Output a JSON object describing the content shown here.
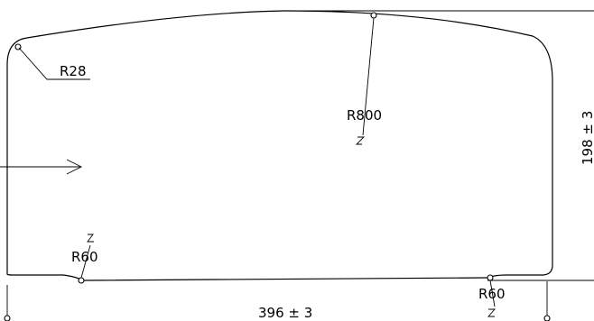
{
  "drawing": {
    "radius_labels": {
      "top_left": "R28",
      "top_center": "R800",
      "bottom_left": "R60",
      "bottom_right": "R60"
    },
    "dimensions": {
      "width": "396 ± 3",
      "height": "198 ± 3"
    }
  }
}
